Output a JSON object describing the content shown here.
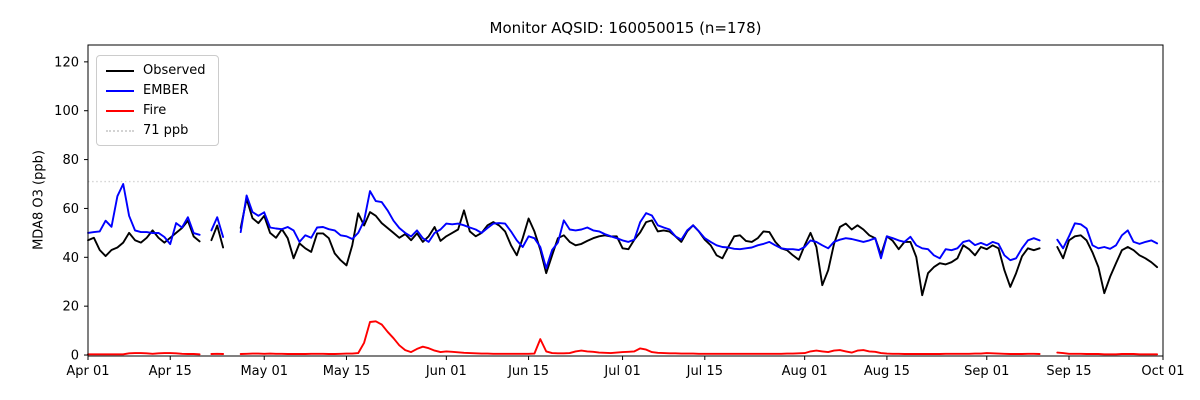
{
  "title": "Monitor AQSID: 160050015 (n=178)",
  "ylabel": "MDA8 O3 (ppb)",
  "legend": {
    "items": [
      {
        "label": "Observed",
        "color": "#000000",
        "dash": false
      },
      {
        "label": "EMBER",
        "color": "#0000ff",
        "dash": false
      },
      {
        "label": "Fire",
        "color": "#ff0000",
        "dash": false
      },
      {
        "label": "71 ppb",
        "color": "#d3d3d3",
        "dash": true
      }
    ]
  },
  "chart_data": {
    "type": "line",
    "title": "Monitor AQSID: 160050015 (n=178)",
    "xlabel": "",
    "ylabel": "MDA8 O3 (ppb)",
    "monitor_aqsid": "160050015",
    "n_points": 178,
    "grid": false,
    "legend_position": "upper left",
    "ylim": [
      -0.4,
      126.9
    ],
    "y_ticks": [
      0,
      20,
      40,
      60,
      80,
      100,
      120
    ],
    "x_start_date": "Apr 01",
    "x_total_days": 183,
    "x_ticks": [
      {
        "label": "Apr 01",
        "day": 0
      },
      {
        "label": "Apr 15",
        "day": 14
      },
      {
        "label": "May 01",
        "day": 30
      },
      {
        "label": "May 15",
        "day": 44
      },
      {
        "label": "Jun 01",
        "day": 61
      },
      {
        "label": "Jun 15",
        "day": 75
      },
      {
        "label": "Jul 01",
        "day": 91
      },
      {
        "label": "Jul 15",
        "day": 105
      },
      {
        "label": "Aug 01",
        "day": 122
      },
      {
        "label": "Aug 15",
        "day": 136
      },
      {
        "label": "Sep 01",
        "day": 153
      },
      {
        "label": "Sep 15",
        "day": 167
      },
      {
        "label": "Oct 01",
        "day": 183
      }
    ],
    "threshold": {
      "value": 71,
      "label": "71 ppb",
      "color": "#d3d3d3",
      "style": "dotted"
    },
    "missing_days": [
      "Apr 21",
      "Apr 25",
      "Apr 26",
      "Sep 11",
      "Sep 12"
    ],
    "series": [
      {
        "name": "Observed",
        "color": "#000000",
        "values": [
          47,
          48,
          43,
          40.5,
          43,
          44,
          46,
          50,
          47,
          46,
          48,
          51,
          48,
          46,
          48,
          50,
          52,
          55,
          48.5,
          46.5,
          null,
          47,
          53,
          44,
          null,
          null,
          52,
          64,
          56,
          54,
          57,
          50,
          48,
          51.5,
          47.8,
          39.6,
          45.7,
          43.7,
          42.2,
          49.8,
          49.8,
          47.8,
          41.6,
          38.8,
          36.7,
          45,
          58,
          53,
          58.5,
          57,
          54,
          52,
          50,
          48,
          49.5,
          47,
          49.8,
          46.3,
          48.6,
          52.4,
          46.7,
          48.6,
          50,
          51.4,
          59.2,
          50.6,
          48.6,
          50,
          53.1,
          54.4,
          53,
          50.6,
          44.9,
          40.8,
          47.8,
          55.9,
          50.6,
          43.1,
          33.5,
          40.8,
          47.8,
          49,
          46.3,
          44.9,
          45.5,
          46.7,
          47.8,
          48.6,
          49,
          48.5,
          48.6,
          43.7,
          43.3,
          47.2,
          50.2,
          54.4,
          55.1,
          50.6,
          51,
          50.5,
          48.6,
          46.3,
          50.6,
          53.1,
          50.6,
          47.2,
          44.9,
          40.8,
          39.6,
          44.2,
          48.6,
          49,
          46.7,
          46.3,
          47.8,
          50.6,
          50.3,
          46.3,
          43.7,
          42.9,
          40.8,
          39,
          44.9,
          50,
          44.2,
          28.6,
          34.7,
          45.5,
          52.4,
          53.8,
          51.4,
          53.1,
          51.4,
          49,
          47.8,
          41,
          48.6,
          46.7,
          43.3,
          46.3,
          46.3,
          40.1,
          24.5,
          33.5,
          36,
          37.6,
          37.1,
          38,
          39.6,
          44.9,
          43.3,
          40.8,
          44.2,
          43.3,
          44.9,
          43.7,
          34.7,
          27.9,
          33.5,
          40.4,
          43.7,
          42.9,
          43.7,
          null,
          null,
          44.2,
          39.6,
          46.9,
          48.6,
          49,
          46.9,
          42,
          36,
          25.3,
          32,
          37.6,
          42.9,
          44.2,
          42.9,
          40.8,
          39.6,
          38,
          36
        ]
      },
      {
        "name": "EMBER",
        "color": "#0000ff",
        "values": [
          50,
          50.3,
          50.6,
          55,
          52.5,
          65,
          70,
          57,
          51,
          50.3,
          50.3,
          49.9,
          50,
          48.3,
          45.4,
          54,
          52.2,
          56.4,
          49.9,
          49.2,
          null,
          51,
          56.4,
          48.3,
          null,
          null,
          50.3,
          65.3,
          58.5,
          57,
          58.4,
          52.2,
          51.8,
          51.5,
          52.4,
          51,
          46.3,
          49,
          48,
          52.2,
          52.4,
          51.5,
          51,
          49,
          48.6,
          47.5,
          50,
          55,
          67.1,
          63,
          62.6,
          59.2,
          55,
          52,
          50,
          48.5,
          51,
          47.8,
          46.3,
          50,
          51.4,
          53.8,
          53.5,
          53.8,
          53.1,
          52.2,
          51.4,
          50,
          52,
          53.8,
          54,
          53.8,
          50.6,
          46.9,
          44.2,
          48.6,
          47.8,
          44.2,
          35.5,
          43,
          46,
          55.1,
          51.4,
          51,
          51.4,
          52.2,
          51,
          50.6,
          49.5,
          48.6,
          47.8,
          46.9,
          46.3,
          47.2,
          54.4,
          58.1,
          57.1,
          53.1,
          52.2,
          51.4,
          48.6,
          47.2,
          51,
          53.1,
          50.6,
          47.8,
          46.3,
          44.9,
          44.2,
          44,
          43.5,
          43.3,
          43.7,
          44,
          44.9,
          45.5,
          46.3,
          44.9,
          43.7,
          43.3,
          43.3,
          43,
          44.2,
          46.9,
          46.3,
          44.9,
          43.7,
          46.3,
          47.2,
          47.8,
          47.5,
          46.9,
          46.3,
          46.9,
          47.8,
          39.6,
          48.6,
          47.8,
          46.9,
          46.3,
          48.4,
          44.9,
          43.7,
          43.3,
          40.8,
          39.6,
          43.3,
          42.9,
          43.7,
          46.3,
          46.9,
          45,
          45.9,
          44.9,
          46.3,
          45.5,
          40.8,
          38.8,
          39.6,
          43.7,
          46.9,
          47.8,
          46.9,
          null,
          null,
          47.2,
          43.7,
          48.6,
          53.9,
          53.5,
          51.8,
          44.9,
          43.7,
          44.2,
          43.5,
          44.9,
          49,
          51,
          46.3,
          45.5,
          46.3,
          46.9,
          45.7
        ]
      },
      {
        "name": "Fire",
        "color": "#ff0000",
        "values": [
          0.3,
          0.3,
          0.3,
          0.3,
          0.3,
          0.3,
          0.3,
          0.7,
          0.8,
          0.8,
          0.7,
          0.5,
          0.7,
          0.8,
          0.8,
          0.7,
          0.5,
          0.4,
          0.4,
          0.3,
          null,
          0.4,
          0.5,
          0.4,
          null,
          null,
          0.4,
          0.5,
          0.6,
          0.6,
          0.5,
          0.6,
          0.5,
          0.5,
          0.4,
          0.4,
          0.4,
          0.4,
          0.5,
          0.5,
          0.5,
          0.4,
          0.4,
          0.5,
          0.6,
          0.6,
          0.8,
          5,
          13.5,
          13.8,
          12.5,
          9.5,
          6.9,
          4,
          2,
          1.2,
          2.5,
          3.4,
          2.8,
          1.8,
          1.2,
          1.5,
          1.3,
          1.1,
          0.9,
          0.8,
          0.7,
          0.6,
          0.6,
          0.5,
          0.5,
          0.5,
          0.5,
          0.5,
          0.5,
          0.5,
          0.6,
          6.5,
          1.5,
          0.8,
          0.7,
          0.7,
          0.8,
          1.5,
          1.8,
          1.5,
          1.3,
          1,
          0.9,
          0.8,
          1,
          1.2,
          1.3,
          1.5,
          2.7,
          2.2,
          1.2,
          0.9,
          0.8,
          0.7,
          0.7,
          0.6,
          0.6,
          0.6,
          0.5,
          0.5,
          0.5,
          0.5,
          0.5,
          0.5,
          0.5,
          0.5,
          0.5,
          0.5,
          0.5,
          0.5,
          0.5,
          0.5,
          0.5,
          0.6,
          0.6,
          0.7,
          0.8,
          1.5,
          1.8,
          1.5,
          1.2,
          1.8,
          2,
          1.5,
          1,
          1.8,
          2,
          1.5,
          1.3,
          0.8,
          0.6,
          0.5,
          0.5,
          0.4,
          0.4,
          0.4,
          0.4,
          0.4,
          0.4,
          0.4,
          0.5,
          0.5,
          0.5,
          0.5,
          0.5,
          0.6,
          0.6,
          0.8,
          0.7,
          0.6,
          0.5,
          0.4,
          0.4,
          0.4,
          0.5,
          0.5,
          0.4,
          null,
          null,
          1,
          0.8,
          0.5,
          0.5,
          0.5,
          0.4,
          0.4,
          0.4,
          0.3,
          0.3,
          0.3,
          0.4,
          0.4,
          0.4,
          0.3,
          0.3,
          0.3,
          0.3
        ]
      }
    ]
  }
}
